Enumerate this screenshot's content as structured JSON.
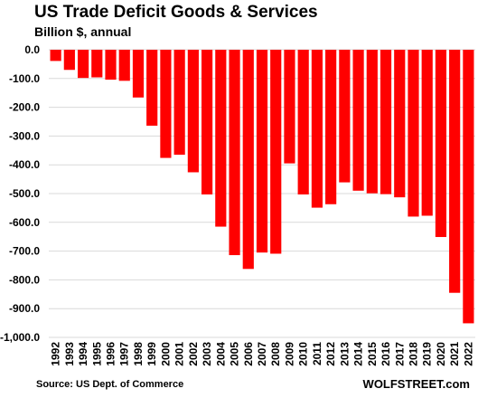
{
  "chart_data": {
    "type": "bar",
    "title": "US Trade Deficit Goods  & Services",
    "subtitle": "Billion $, annual",
    "xlabel": "",
    "ylabel": "",
    "categories": [
      "1992",
      "1993",
      "1994",
      "1995",
      "1996",
      "1997",
      "1998",
      "1999",
      "2000",
      "2001",
      "2002",
      "2003",
      "2004",
      "2005",
      "2006",
      "2007",
      "2008",
      "2009",
      "2010",
      "2011",
      "2012",
      "2013",
      "2014",
      "2015",
      "2016",
      "2017",
      "2018",
      "2019",
      "2020",
      "2021",
      "2022"
    ],
    "values": [
      -39,
      -70,
      -98,
      -96,
      -104,
      -108,
      -166,
      -264,
      -376,
      -365,
      -426,
      -503,
      -615,
      -714,
      -762,
      -705,
      -709,
      -395,
      -503,
      -549,
      -537,
      -461,
      -490,
      -499,
      -502,
      -513,
      -580,
      -577,
      -651,
      -845,
      -951
    ],
    "ylim": [
      -1000,
      0
    ],
    "yticks": [
      0,
      -100,
      -200,
      -300,
      -400,
      -500,
      -600,
      -700,
      -800,
      -900,
      -1000
    ],
    "ytick_labels": [
      "0.0",
      "-100.0",
      "-200.0",
      "-300.0",
      "-400.0",
      "-500.0",
      "-600.0",
      "-700.0",
      "-800.0",
      "-900.0",
      "-1,000.0"
    ],
    "bar_color": "#ff0000",
    "gridlines": "horizontal",
    "gridline_color": "#d9d9d9",
    "legend": "none"
  },
  "source": "Source: US Dept. of Commerce",
  "watermark": "WOLFSTREET.com"
}
